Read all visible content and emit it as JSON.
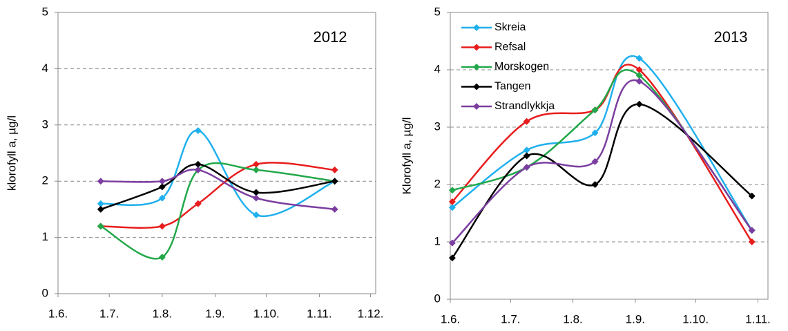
{
  "chart_data": [
    {
      "type": "line",
      "annotation": "2012",
      "y_label": "klorofyll a, µg/l",
      "x": [
        25,
        61,
        82,
        116,
        162
      ],
      "xlim": [
        0,
        186
      ],
      "xticks": [
        {
          "value": 0,
          "label": "1.6."
        },
        {
          "value": 30,
          "label": "1.7."
        },
        {
          "value": 61,
          "label": "1.8."
        },
        {
          "value": 92,
          "label": "1.9."
        },
        {
          "value": 122,
          "label": "1.10."
        },
        {
          "value": 153,
          "label": "1.11."
        },
        {
          "value": 183,
          "label": "1.12."
        }
      ],
      "ylim": [
        0,
        5
      ],
      "yticks": [
        0,
        1,
        2,
        3,
        4,
        5
      ],
      "grid": true,
      "series": [
        {
          "color": "#1fb0ee",
          "values": [
            1.6,
            1.7,
            2.9,
            1.4,
            2.0
          ]
        },
        {
          "color": "#e81c1c",
          "values": [
            1.2,
            1.2,
            1.6,
            2.3,
            2.2
          ]
        },
        {
          "color": "#22a84a",
          "values": [
            1.2,
            0.65,
            2.2,
            2.2,
            2.0
          ]
        },
        {
          "color": "#000000",
          "values": [
            1.5,
            1.9,
            2.3,
            1.8,
            2.0
          ]
        },
        {
          "color": "#7b3ea0",
          "values": [
            2.0,
            2.0,
            2.2,
            1.7,
            1.5
          ]
        }
      ]
    },
    {
      "type": "line",
      "annotation": "2013",
      "y_label": "Klorofyll a, µg/l",
      "x": [
        1,
        38,
        72,
        94,
        150
      ],
      "xlim": [
        0,
        158
      ],
      "xticks": [
        {
          "value": 0,
          "label": "1.6."
        },
        {
          "value": 30,
          "label": "1.7."
        },
        {
          "value": 61,
          "label": "1.8."
        },
        {
          "value": 92,
          "label": "1.9."
        },
        {
          "value": 122,
          "label": "1.10."
        },
        {
          "value": 153,
          "label": "1.11."
        }
      ],
      "ylim": [
        0,
        5
      ],
      "yticks": [
        0,
        1,
        2,
        3,
        4,
        5
      ],
      "grid": true,
      "legend": "top-left",
      "series": [
        {
          "name": "Skreia",
          "color": "#1fb0ee",
          "values": [
            1.6,
            2.6,
            2.9,
            4.2,
            1.2
          ]
        },
        {
          "name": "Refsal",
          "color": "#e81c1c",
          "values": [
            1.7,
            3.1,
            3.3,
            4.0,
            1.0
          ]
        },
        {
          "name": "Morskogen",
          "color": "#22a84a",
          "values": [
            1.9,
            2.3,
            3.3,
            3.9,
            1.2
          ]
        },
        {
          "name": "Tangen",
          "color": "#000000",
          "values": [
            0.72,
            2.5,
            2.0,
            3.4,
            1.8
          ]
        },
        {
          "name": "Strandlykkja",
          "color": "#7b3ea0",
          "values": [
            0.98,
            2.3,
            2.4,
            3.8,
            1.2
          ]
        }
      ]
    }
  ]
}
